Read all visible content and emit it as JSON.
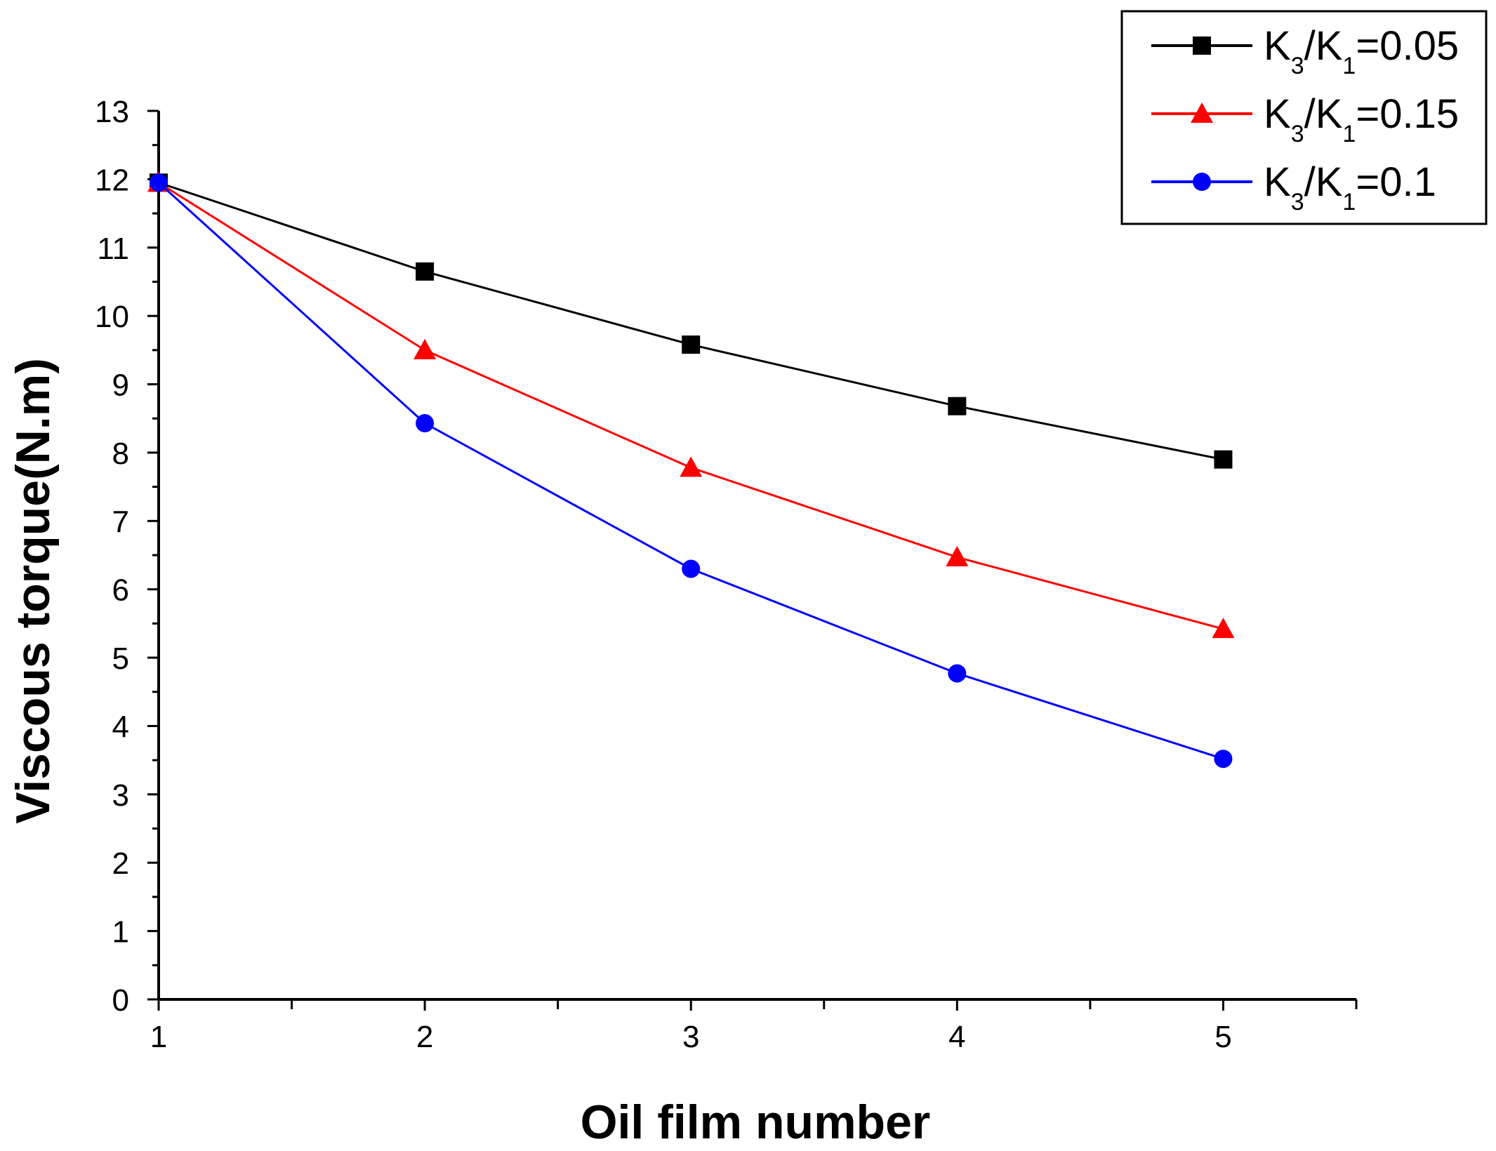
{
  "chart_data": {
    "type": "line",
    "xlabel": "Oil film number",
    "ylabel": "Viscous torque(N.m)",
    "x": [
      1,
      2,
      3,
      4,
      5
    ],
    "xlim": [
      1,
      5.5
    ],
    "ylim": [
      0,
      13
    ],
    "xticks": [
      "1",
      "2",
      "3",
      "4",
      "5"
    ],
    "yticks": [
      "0",
      "1",
      "2",
      "3",
      "4",
      "5",
      "6",
      "7",
      "8",
      "9",
      "10",
      "11",
      "12",
      "13"
    ],
    "legend_position": "top-right",
    "series": [
      {
        "name": "K3/K1=0.05",
        "legend": {
          "k1": "K",
          "sub1": "3",
          "slash": "/",
          "k2": "K",
          "sub2": "1",
          "value": "=0.05"
        },
        "marker": "square",
        "color": "#000000",
        "values": [
          11.95,
          10.65,
          9.58,
          8.68,
          7.9
        ]
      },
      {
        "name": "K3/K1=0.15",
        "legend": {
          "k1": "K",
          "sub1": "3",
          "slash": "/",
          "k2": "K",
          "sub2": "1",
          "value": "=0.15"
        },
        "marker": "triangle",
        "color": "#ff0000",
        "values": [
          11.95,
          9.5,
          7.78,
          6.47,
          5.42
        ]
      },
      {
        "name": "K3/K1=0.1",
        "legend": {
          "k1": "K",
          "sub1": "3",
          "slash": "/",
          "k2": "K",
          "sub2": "1",
          "value": "=0.1"
        },
        "marker": "circle",
        "color": "#0000ff",
        "values": [
          11.95,
          8.43,
          6.3,
          4.77,
          3.52
        ]
      }
    ]
  }
}
